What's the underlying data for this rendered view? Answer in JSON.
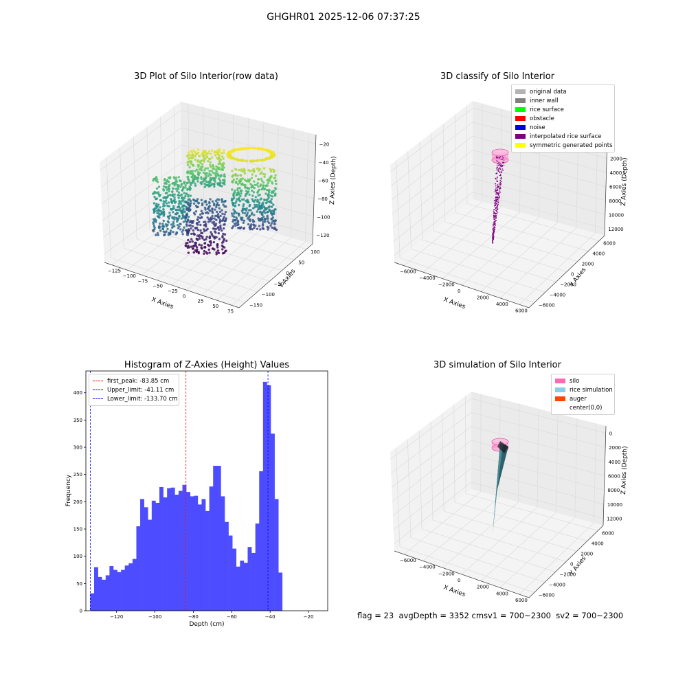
{
  "suptitle": "GHGHR01 2025-12-06 07:37:25",
  "panels": {
    "raw": {
      "title": "3D Plot of Silo Interior(row data)",
      "xlabel": "X Axies",
      "ylabel": "Y Axies",
      "zlabel": "Z Axies (Depth)",
      "xticks": [
        "−125",
        "−100",
        "−75",
        "−50",
        "−25",
        "0",
        "25",
        "50",
        "75"
      ],
      "yticks": [
        "100",
        "50",
        "0",
        "−50",
        "−100",
        "−150"
      ],
      "zticks": [
        "−20",
        "−40",
        "−60",
        "−80",
        "−100",
        "−120"
      ]
    },
    "classify": {
      "title": "3D classify of Silo Interior",
      "xlabel": "X Axies",
      "ylabel": "Y Axies",
      "zlabel": "Z Axies (Depth)",
      "xticks": [
        "−6000",
        "−4000",
        "−2000",
        "0",
        "2000",
        "4000",
        "6000"
      ],
      "yticks": [
        "6000",
        "4000",
        "2000",
        "0",
        "−2000",
        "−4000",
        "−6000"
      ],
      "zticks": [
        "0",
        "2000",
        "4000",
        "6000",
        "8000",
        "10000",
        "12000"
      ],
      "legend": [
        {
          "label": "original data",
          "color": "#b3b3b3"
        },
        {
          "label": "inner wall",
          "color": "#808080"
        },
        {
          "label": "rice surface",
          "color": "#00ff00"
        },
        {
          "label": "obstacle",
          "color": "#ff0000"
        },
        {
          "label": "noise",
          "color": "#0000e6"
        },
        {
          "label": "interpolated rice surface",
          "color": "#800080"
        },
        {
          "label": "symmetric generated points",
          "color": "#ffff00"
        }
      ]
    },
    "simulation": {
      "title": "3D simulation of Silo Interior",
      "xlabel": "X Axies",
      "ylabel": "Y Axies",
      "zlabel": "Z Axies (Depth)",
      "xticks": [
        "−6000",
        "−4000",
        "−2000",
        "0",
        "2000",
        "4000",
        "6000"
      ],
      "yticks": [
        "6000",
        "4000",
        "2000",
        "0",
        "−2000",
        "−4000",
        "−6000"
      ],
      "zticks": [
        "0",
        "2000",
        "4000",
        "6000",
        "8000",
        "10000",
        "12000"
      ],
      "legend": [
        {
          "label": "silo",
          "color": "#ff69b4"
        },
        {
          "label": "rice simulation",
          "color": "#87ceeb"
        },
        {
          "label": "auger",
          "color": "#ff4500"
        },
        {
          "label": "center(0,0)",
          "color": ""
        }
      ]
    }
  },
  "chart_data": {
    "type": "bar",
    "title": "Histogram of Z-Axies (Height) Values",
    "xlabel": "Depth (cm)",
    "ylabel": "Frequency",
    "xlim": [
      -136,
      -10
    ],
    "ylim": [
      0,
      440
    ],
    "xticks": [
      -120,
      -100,
      -80,
      -60,
      -40,
      -20
    ],
    "yticks": [
      0,
      50,
      100,
      150,
      200,
      250,
      300,
      350,
      400
    ],
    "bin_width": 2.0,
    "bin_start": -133.7,
    "bar_color": "#4d4dff",
    "values": [
      32,
      80,
      62,
      57,
      65,
      82,
      75,
      71,
      75,
      83,
      87,
      95,
      155,
      205,
      190,
      167,
      202,
      198,
      227,
      208,
      225,
      226,
      213,
      220,
      231,
      218,
      210,
      211,
      195,
      205,
      183,
      228,
      266,
      266,
      210,
      163,
      138,
      114,
      81,
      92,
      88,
      117,
      106,
      160,
      256,
      420,
      414,
      325,
      205,
      70
    ],
    "lines": [
      {
        "label": "first_peak: -83.85 cm",
        "x": -83.85,
        "color": "#ff0000"
      },
      {
        "label": "Upper_limit: -41.11 cm",
        "x": -41.11,
        "color": "#0000ff"
      },
      {
        "label": "Lower_limit: -133.70 cm",
        "x": -133.7,
        "color": "#0000ff"
      }
    ]
  },
  "footer": "flag = 23  avgDepth = 3352 cmsv1 = 700~2300  sv2 = 700~2300"
}
